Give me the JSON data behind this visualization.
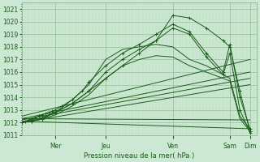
{
  "background_color": "#cce8d4",
  "grid_major_color": "#99bb99",
  "grid_minor_color": "#bbddbb",
  "line_color": "#1a5c1a",
  "xlabel_text": "Pression niveau de la mer( hPa )",
  "ylim": [
    1011.0,
    1021.5
  ],
  "xlim": [
    0.0,
    7.0
  ],
  "yticks": [
    1011,
    1012,
    1013,
    1014,
    1015,
    1016,
    1017,
    1018,
    1019,
    1020,
    1021
  ],
  "xtick_positions": [
    1.0,
    2.5,
    4.5,
    6.2,
    6.8
  ],
  "xtick_labels": [
    "Mer",
    "Jeu",
    "Ven",
    "Sam",
    "Dim"
  ],
  "day_lines_x": [
    1.0,
    2.5,
    4.5,
    6.2,
    6.8
  ],
  "lines": [
    {
      "x": [
        0.0,
        0.1,
        0.2,
        0.3,
        0.4,
        0.5,
        0.6,
        0.7,
        0.8,
        0.9,
        1.0,
        1.2,
        1.5,
        1.8,
        2.0,
        2.5,
        3.0,
        3.5,
        4.0,
        4.5,
        5.0,
        5.5,
        6.0,
        6.2,
        6.5,
        6.8
      ],
      "y": [
        1012.0,
        1012.1,
        1012.2,
        1012.3,
        1012.4,
        1012.5,
        1012.6,
        1012.7,
        1012.8,
        1012.9,
        1013.0,
        1013.3,
        1013.8,
        1014.5,
        1015.2,
        1016.5,
        1017.5,
        1018.2,
        1019.0,
        1019.8,
        1019.2,
        1017.5,
        1016.0,
        1018.2,
        1014.0,
        1011.5
      ],
      "marker": true,
      "lw": 0.7
    },
    {
      "x": [
        0.0,
        0.3,
        0.6,
        1.0,
        1.5,
        2.0,
        2.5,
        3.0,
        3.5,
        4.0,
        4.5,
        5.0,
        5.5,
        6.0,
        6.2,
        6.5,
        6.8
      ],
      "y": [
        1012.0,
        1012.1,
        1012.3,
        1012.8,
        1013.5,
        1014.5,
        1015.5,
        1016.5,
        1017.5,
        1018.5,
        1020.5,
        1020.3,
        1019.5,
        1018.5,
        1018.0,
        1014.5,
        1011.3
      ],
      "marker": true,
      "lw": 0.7
    },
    {
      "x": [
        0.0,
        0.3,
        0.6,
        1.0,
        1.5,
        2.0,
        2.5,
        3.0,
        3.5,
        4.0,
        4.5,
        5.0,
        5.5,
        6.0,
        6.2,
        6.5,
        6.8
      ],
      "y": [
        1012.0,
        1012.1,
        1012.3,
        1012.8,
        1013.5,
        1014.5,
        1016.0,
        1017.0,
        1017.8,
        1018.5,
        1019.5,
        1019.0,
        1017.2,
        1015.8,
        1017.5,
        1013.0,
        1011.2
      ],
      "marker": true,
      "lw": 0.7
    },
    {
      "x": [
        0.0,
        0.5,
        1.0,
        1.5,
        2.0,
        2.5,
        3.0,
        3.5,
        4.0,
        4.5,
        5.0,
        5.5,
        6.0,
        6.2,
        6.5,
        6.8
      ],
      "y": [
        1012.0,
        1012.3,
        1012.8,
        1013.8,
        1015.0,
        1017.0,
        1017.8,
        1018.0,
        1018.2,
        1018.0,
        1017.0,
        1016.5,
        1015.8,
        1015.5,
        1012.5,
        1011.5
      ],
      "marker": false,
      "lw": 0.7
    },
    {
      "x": [
        0.0,
        0.5,
        1.0,
        1.5,
        2.0,
        2.5,
        3.0,
        3.5,
        4.0,
        4.5,
        5.0,
        5.5,
        6.0,
        6.2,
        6.5,
        6.8
      ],
      "y": [
        1012.0,
        1012.2,
        1012.6,
        1013.3,
        1014.2,
        1015.5,
        1016.5,
        1017.0,
        1017.3,
        1017.2,
        1016.5,
        1016.0,
        1015.5,
        1015.3,
        1012.3,
        1011.3
      ],
      "marker": false,
      "lw": 0.7
    },
    {
      "x": [
        0.0,
        6.8
      ],
      "y": [
        1012.5,
        1017.0
      ],
      "marker": false,
      "lw": 0.7
    },
    {
      "x": [
        0.0,
        6.8
      ],
      "y": [
        1012.3,
        1016.0
      ],
      "marker": false,
      "lw": 0.7
    },
    {
      "x": [
        0.0,
        6.8
      ],
      "y": [
        1012.2,
        1015.5
      ],
      "marker": false,
      "lw": 0.7
    },
    {
      "x": [
        0.0,
        6.8
      ],
      "y": [
        1012.0,
        1015.0
      ],
      "marker": false,
      "lw": 0.7
    },
    {
      "x": [
        0.0,
        6.8
      ],
      "y": [
        1012.3,
        1012.2
      ],
      "marker": false,
      "lw": 0.7
    },
    {
      "x": [
        0.0,
        6.8
      ],
      "y": [
        1012.1,
        1011.5
      ],
      "marker": false,
      "lw": 0.7
    }
  ],
  "figsize": [
    3.2,
    2.0
  ],
  "dpi": 100
}
